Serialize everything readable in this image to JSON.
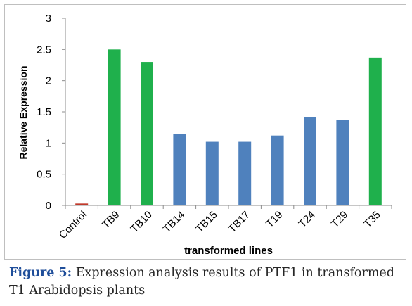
{
  "chart_data": {
    "type": "bar",
    "title": "",
    "xlabel": "transformed lines",
    "ylabel": "Relative Expression",
    "ylim": [
      0,
      3
    ],
    "yticks": [
      "0",
      "0.5",
      "1",
      "1.5",
      "2",
      "2.5",
      "3"
    ],
    "grid": false,
    "categories": [
      "Control",
      "TB9",
      "TB10",
      "TB14",
      "TB15",
      "TB17",
      "T19",
      "T24",
      "T29",
      "T35"
    ],
    "values": [
      0.03,
      2.5,
      2.3,
      1.14,
      1.02,
      1.02,
      1.12,
      1.41,
      1.37,
      2.37
    ],
    "bar_colors": [
      "#c0392b",
      "#1fb04c",
      "#1fb04c",
      "#4f81bd",
      "#4f81bd",
      "#4f81bd",
      "#4f81bd",
      "#4f81bd",
      "#4f81bd",
      "#1fb04c"
    ]
  },
  "caption": {
    "lead": "Figure 5:",
    "text": " Expression analysis results of PTF1 in transformed T1 Arabidopsis plants"
  }
}
